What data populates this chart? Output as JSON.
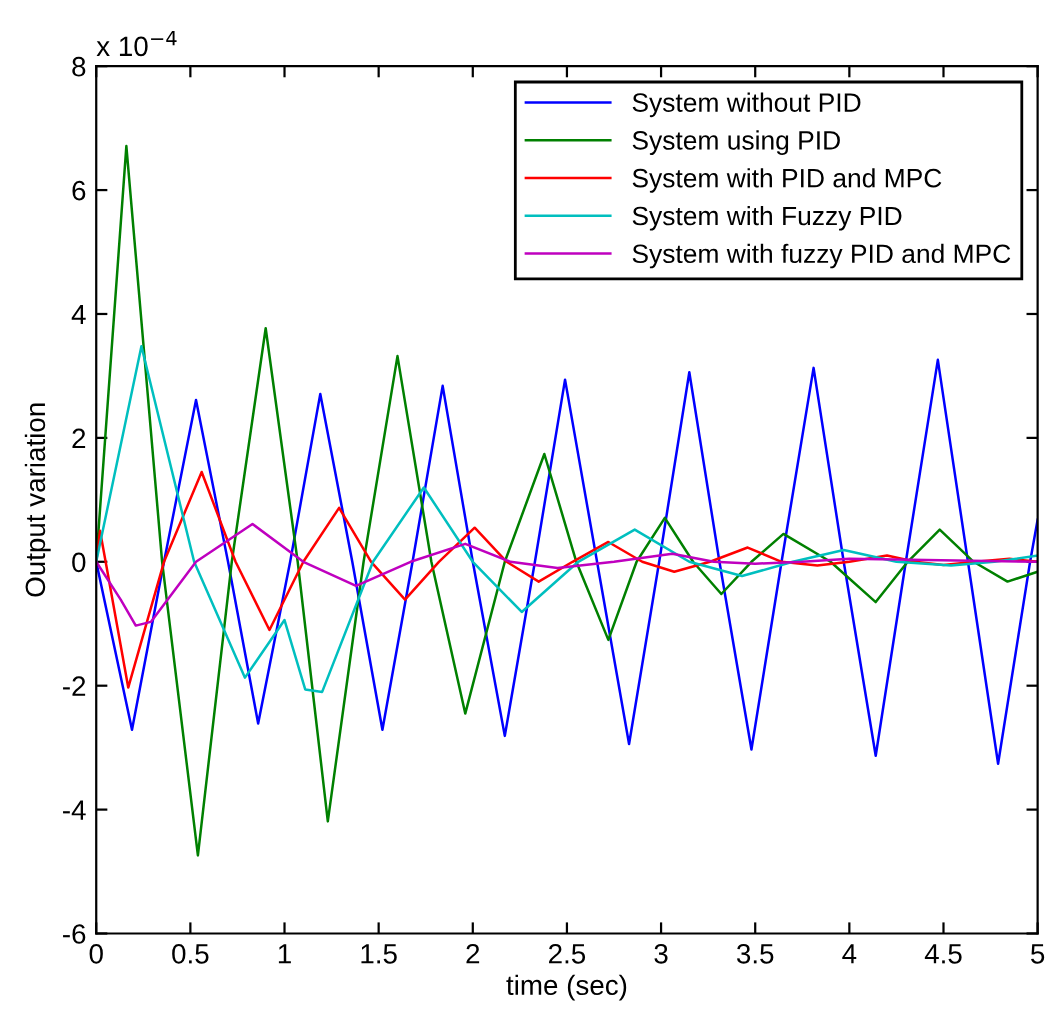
{
  "chart_data": {
    "type": "line",
    "xlabel": "time (sec)",
    "ylabel": "Output variation",
    "annotations": [
      "x 10$^{−4}$"
    ],
    "xlim": [
      0,
      5
    ],
    "ylim": [
      -6,
      8
    ],
    "xticks": [
      0,
      {
        "value": 0.5,
        "label": "0.5"
      },
      1,
      {
        "value": 1.5,
        "label": "1.5"
      },
      2,
      {
        "value": 2.5,
        "label": "2.5"
      },
      3,
      {
        "value": 3.5,
        "label": "3.5"
      },
      4,
      {
        "value": 4.5,
        "label": "4.5"
      },
      5
    ],
    "yticks": [
      -6,
      -4,
      -2,
      0,
      2,
      4,
      6,
      8
    ],
    "grid": false,
    "legend": "top right",
    "marker": "none",
    "line_style": "solid",
    "series": [
      {
        "name": "System without PID",
        "color": "#0000ff",
        "x": [
          0,
          0.19,
          0.36,
          0.53,
          0.7,
          0.86,
          1.03,
          1.19,
          1.36,
          1.52,
          1.68,
          1.84,
          2.0,
          2.17,
          2.33,
          2.49,
          2.66,
          2.83,
          2.99,
          3.15,
          3.31,
          3.48,
          3.64,
          3.81,
          3.97,
          4.14,
          4.3,
          4.47,
          4.63,
          4.79,
          4.96,
          5.0
        ],
        "values": [
          0,
          -2.71,
          0,
          2.61,
          0,
          -2.61,
          0,
          2.71,
          0,
          -2.71,
          0,
          2.84,
          0,
          -2.81,
          0,
          2.94,
          0,
          -2.94,
          0,
          3.06,
          0,
          -3.03,
          0,
          3.13,
          0,
          -3.13,
          0,
          3.26,
          0,
          -3.26,
          0,
          0.68
        ]
      },
      {
        "name": "System using PID",
        "color": "#008000",
        "x": [
          0,
          0.16,
          0.35,
          0.54,
          0.72,
          0.9,
          1.07,
          1.23,
          1.42,
          1.6,
          1.78,
          1.96,
          2.17,
          2.38,
          2.55,
          2.72,
          2.87,
          3.02,
          3.17,
          3.32,
          3.48,
          3.65,
          3.9,
          4.14,
          4.31,
          4.48,
          4.66,
          4.84,
          5.0
        ],
        "values": [
          0,
          6.71,
          0,
          -4.74,
          0,
          3.77,
          0,
          -4.19,
          0,
          3.32,
          0,
          -2.45,
          0,
          1.74,
          0,
          -1.26,
          0,
          0.71,
          0,
          -0.52,
          0,
          0.45,
          0,
          -0.65,
          0,
          0.52,
          0,
          -0.32,
          -0.16
        ]
      },
      {
        "name": "System with PID and MPC",
        "color": "#ff0000",
        "x": [
          0,
          0.02,
          0.05,
          0.17,
          0.36,
          0.56,
          0.74,
          0.92,
          1.1,
          1.29,
          1.46,
          1.64,
          1.82,
          2.01,
          2.18,
          2.35,
          2.53,
          2.72,
          2.9,
          3.07,
          3.26,
          3.46,
          3.64,
          3.83,
          4.0,
          4.2,
          4.35,
          4.5,
          4.67,
          4.85,
          5.0
        ],
        "values": [
          0,
          0.5,
          0,
          -2.03,
          0,
          1.45,
          0,
          -1.1,
          0,
          0.87,
          0,
          -0.61,
          0,
          0.55,
          0,
          -0.32,
          0,
          0.32,
          0,
          -0.16,
          0,
          0.23,
          0,
          -0.06,
          0,
          0.1,
          0,
          -0.05,
          0,
          0.05,
          0
        ]
      },
      {
        "name": "System with Fuzzy PID",
        "color": "#00bfbf",
        "x": [
          0,
          0.24,
          0.52,
          0.79,
          1.0,
          1.11,
          1.2,
          1.47,
          1.74,
          2.0,
          2.26,
          2.56,
          2.86,
          3.15,
          3.43,
          3.7,
          3.97,
          4.25,
          4.54,
          4.77,
          5.0
        ],
        "values": [
          0,
          3.48,
          0,
          -1.87,
          -0.94,
          -2.06,
          -2.1,
          0,
          1.2,
          0,
          -0.81,
          0,
          0.52,
          0,
          -0.23,
          0,
          0.19,
          0,
          -0.06,
          0,
          0.1
        ]
      },
      {
        "name": "System with fuzzy PID and MPC",
        "color": "#bf00bf",
        "x": [
          0,
          0.13,
          0.21,
          0.29,
          0.53,
          0.83,
          1.1,
          1.38,
          1.67,
          1.96,
          2.2,
          2.45,
          2.75,
          3.06,
          3.28,
          3.5,
          3.75,
          4.0,
          5.0
        ],
        "values": [
          0,
          -0.61,
          -1.03,
          -0.97,
          0,
          0.61,
          0,
          -0.39,
          0,
          0.29,
          0,
          -0.1,
          0,
          0.13,
          0,
          -0.03,
          0,
          0.05,
          0
        ]
      }
    ]
  }
}
